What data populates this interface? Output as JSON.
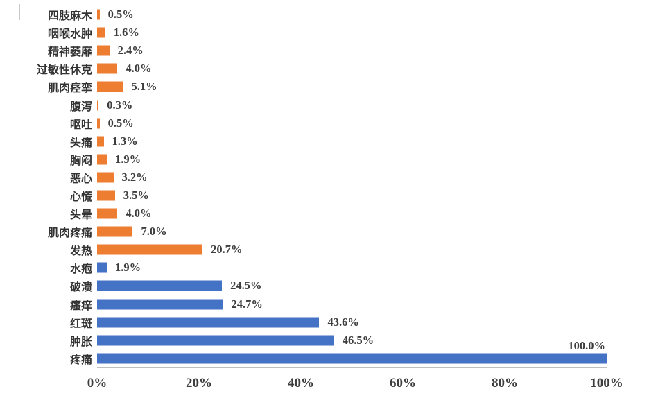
{
  "chart_data": {
    "type": "bar",
    "orientation": "horizontal",
    "title": "",
    "xlabel": "",
    "ylabel": "",
    "xlim": [
      0,
      100
    ],
    "grid": false,
    "legend_position": "none",
    "x_tick_labels": [
      "0%",
      "20%",
      "40%",
      "60%",
      "80%",
      "100%"
    ],
    "x_tick_values": [
      0,
      20,
      40,
      60,
      80,
      100
    ],
    "colors": {
      "orange": "#ED7D31",
      "blue": "#4472C4"
    },
    "bars": [
      {
        "label": "四肢麻木",
        "value": 0.5,
        "value_label": "0.5%",
        "color": "orange"
      },
      {
        "label": "咽喉水肿",
        "value": 1.6,
        "value_label": "1.6%",
        "color": "orange"
      },
      {
        "label": "精神萎靡",
        "value": 2.4,
        "value_label": "2.4%",
        "color": "orange"
      },
      {
        "label": "过敏性休克",
        "value": 4.0,
        "value_label": "4.0%",
        "color": "orange"
      },
      {
        "label": "肌肉痉挛",
        "value": 5.1,
        "value_label": "5.1%",
        "color": "orange"
      },
      {
        "label": "腹泻",
        "value": 0.3,
        "value_label": "0.3%",
        "color": "orange"
      },
      {
        "label": "呕吐",
        "value": 0.5,
        "value_label": "0.5%",
        "color": "orange"
      },
      {
        "label": "头痛",
        "value": 1.3,
        "value_label": "1.3%",
        "color": "orange"
      },
      {
        "label": "胸闷",
        "value": 1.9,
        "value_label": "1.9%",
        "color": "orange"
      },
      {
        "label": "恶心",
        "value": 3.2,
        "value_label": "3.2%",
        "color": "orange"
      },
      {
        "label": "心慌",
        "value": 3.5,
        "value_label": "3.5%",
        "color": "orange"
      },
      {
        "label": "头晕",
        "value": 4.0,
        "value_label": "4.0%",
        "color": "orange"
      },
      {
        "label": "肌肉疼痛",
        "value": 7.0,
        "value_label": "7.0%",
        "color": "orange"
      },
      {
        "label": "发热",
        "value": 20.7,
        "value_label": "20.7%",
        "color": "orange"
      },
      {
        "label": "水疱",
        "value": 1.9,
        "value_label": "1.9%",
        "color": "blue"
      },
      {
        "label": "破溃",
        "value": 24.5,
        "value_label": "24.5%",
        "color": "blue"
      },
      {
        "label": "瘙痒",
        "value": 24.7,
        "value_label": "24.7%",
        "color": "blue"
      },
      {
        "label": "红斑",
        "value": 43.6,
        "value_label": "43.6%",
        "color": "blue"
      },
      {
        "label": "肿胀",
        "value": 46.5,
        "value_label": "46.5%",
        "color": "blue"
      },
      {
        "label": "疼痛",
        "value": 100.0,
        "value_label": "100.0%",
        "color": "blue"
      }
    ]
  }
}
